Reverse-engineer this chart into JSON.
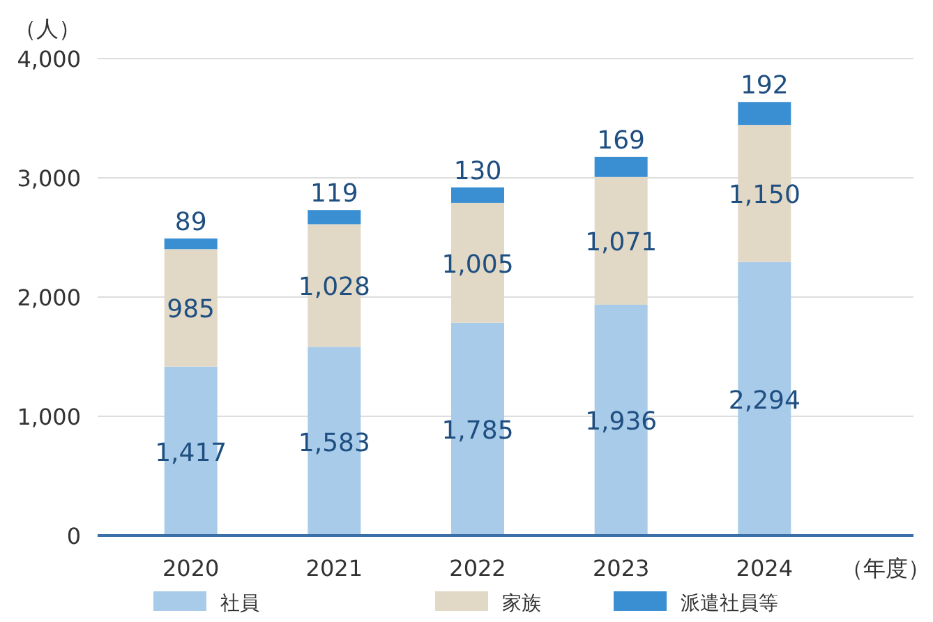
{
  "chart_data": {
    "type": "bar",
    "stacked": true,
    "ylabel": "（人）",
    "xlabel": "（年度）",
    "categories": [
      "2020",
      "2021",
      "2022",
      "2023",
      "2024"
    ],
    "series": [
      {
        "name": "社員",
        "color": "#a9cbea",
        "values": [
          1417,
          1583,
          1785,
          1936,
          2294
        ],
        "value_labels": [
          "1,417",
          "1,583",
          "1,785",
          "1,936",
          "2,294"
        ]
      },
      {
        "name": "家族",
        "color": "#e2d8c6",
        "values": [
          985,
          1028,
          1005,
          1071,
          1150
        ],
        "value_labels": [
          "985",
          "1,028",
          "1,005",
          "1,071",
          "1,150"
        ]
      },
      {
        "name": "派遣社員等",
        "color": "#3a8fd3",
        "values": [
          89,
          119,
          130,
          169,
          192
        ],
        "value_labels": [
          "89",
          "119",
          "130",
          "169",
          "192"
        ]
      }
    ],
    "ylim": [
      0,
      4000
    ],
    "yticks": [
      0,
      {
        "value": 1000,
        "label": "1,000"
      },
      {
        "value": 2000,
        "label": "2,000"
      },
      {
        "value": 3000,
        "label": "3,000"
      },
      {
        "value": 4000,
        "label": "4,000"
      }
    ],
    "grid": "y",
    "legend": "bottom"
  }
}
